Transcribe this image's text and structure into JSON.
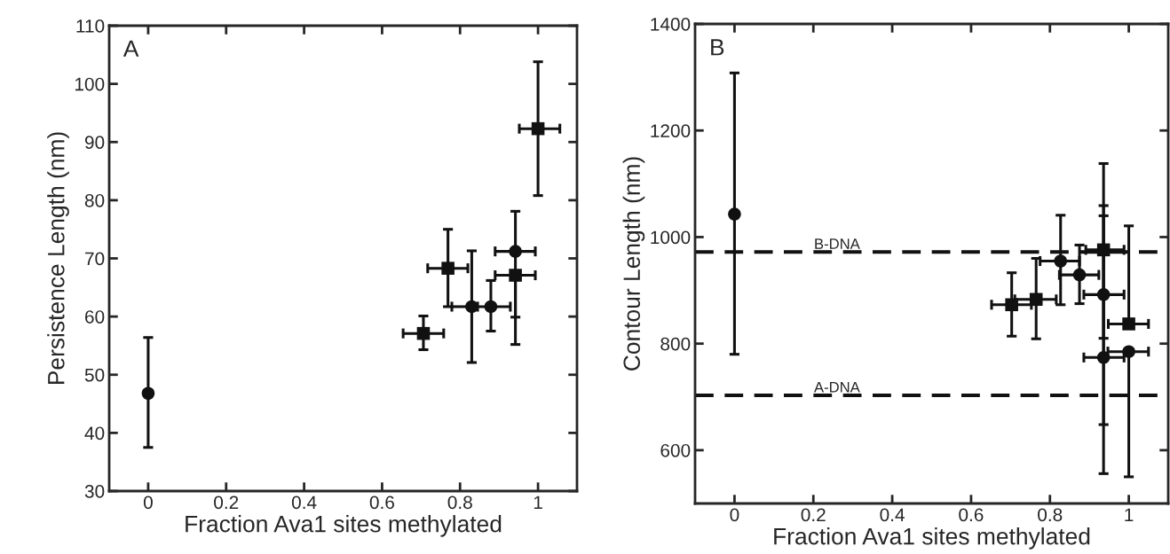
{
  "chart_data": [
    {
      "type": "scatter",
      "xlabel": "Fraction Ava1 sites methylated",
      "ylabel": "Persistence Length (nm)",
      "annotations": [
        "A"
      ],
      "xlim": [
        -0.1,
        1.1
      ],
      "xticks": [
        0,
        0.2,
        0.4,
        0.6,
        0.8,
        1
      ],
      "ylim": [
        30,
        110
      ],
      "yticks": [
        30,
        40,
        50,
        60,
        70,
        80,
        90,
        100,
        110
      ],
      "grid": false,
      "legend": false,
      "series": [
        {
          "color": "#111111",
          "marker": "circle",
          "x": [
            0,
            0.83,
            0.879,
            0.942
          ],
          "values": [
            46.8,
            61.7,
            61.7,
            71.2
          ],
          "errors": [
            [
              37.5,
              56.4
            ],
            [
              52.1,
              71.3
            ],
            [
              57.5,
              66.2
            ],
            [
              55.2,
              78.1
            ]
          ],
          "xerrors": [
            null,
            [
              0.779,
              0.83
            ],
            [
              0.845,
              0.929
            ],
            [
              0.89,
              0.993
            ]
          ]
        },
        {
          "color": "#111111",
          "marker": "square",
          "x": [
            0.706,
            0.769,
            0.942,
            1.0
          ],
          "values": [
            57.1,
            68.3,
            67.1,
            92.3
          ],
          "errors": [
            [
              54.3,
              60.1
            ],
            [
              61.7,
              75
            ],
            [
              59.9,
              67.1
            ],
            [
              80.8,
              103.8
            ]
          ],
          "xerrors": [
            [
              0.654,
              0.758
            ],
            [
              0.717,
              0.82
            ],
            [
              0.89,
              0.993
            ],
            [
              0.952,
              1.056
            ]
          ]
        }
      ]
    },
    {
      "type": "scatter",
      "xlabel": "Fraction Ava1 sites methylated",
      "ylabel": "Contour Length (nm)",
      "annotations": [
        "B"
      ],
      "xlim": [
        -0.1,
        1.1
      ],
      "xticks": [
        0,
        0.2,
        0.4,
        0.6,
        0.8,
        1
      ],
      "ylim": [
        500,
        1400
      ],
      "yticks": [
        600,
        800,
        1000,
        1200,
        1400
      ],
      "grid": false,
      "legend": false,
      "ref_lines": [
        {
          "axis": "y",
          "value": 972,
          "label": "B-DNA",
          "color": "#111111",
          "line_style": "dashed"
        },
        {
          "axis": "y",
          "value": 703,
          "label": "A-DNA",
          "color": "#111111",
          "line_style": "dashed"
        }
      ],
      "series": [
        {
          "color": "#111111",
          "marker": "circle",
          "x": [
            0,
            0.827,
            0.875,
            0.936,
            0.936,
            1.0
          ],
          "values": [
            1043,
            955,
            929,
            892,
            774,
            785
          ],
          "errors": [
            [
              780,
              1308
            ],
            [
              873,
              1041
            ],
            [
              875,
              985
            ],
            [
              648,
              1059
            ],
            [
              556,
              1040
            ],
            [
              550,
              785
            ]
          ],
          "xerrors": [
            null,
            [
              0.775,
              0.875
            ],
            [
              0.824,
              0.924
            ],
            [
              0.886,
              0.988
            ],
            [
              0.886,
              0.988
            ],
            [
              0.947,
              1.05
            ]
          ]
        },
        {
          "color": "#111111",
          "marker": "square",
          "x": [
            0.703,
            0.765,
            0.936,
            1.0
          ],
          "values": [
            873,
            883,
            976,
            837
          ],
          "errors": [
            [
              814,
              933
            ],
            [
              809,
              960
            ],
            [
              810,
              1138
            ],
            [
              837,
              1021
            ]
          ],
          "xerrors": [
            [
              0.652,
              0.753
            ],
            [
              0.711,
              0.816
            ],
            [
              0.891,
              0.988
            ],
            [
              0.948,
              1.05
            ]
          ]
        }
      ]
    }
  ]
}
